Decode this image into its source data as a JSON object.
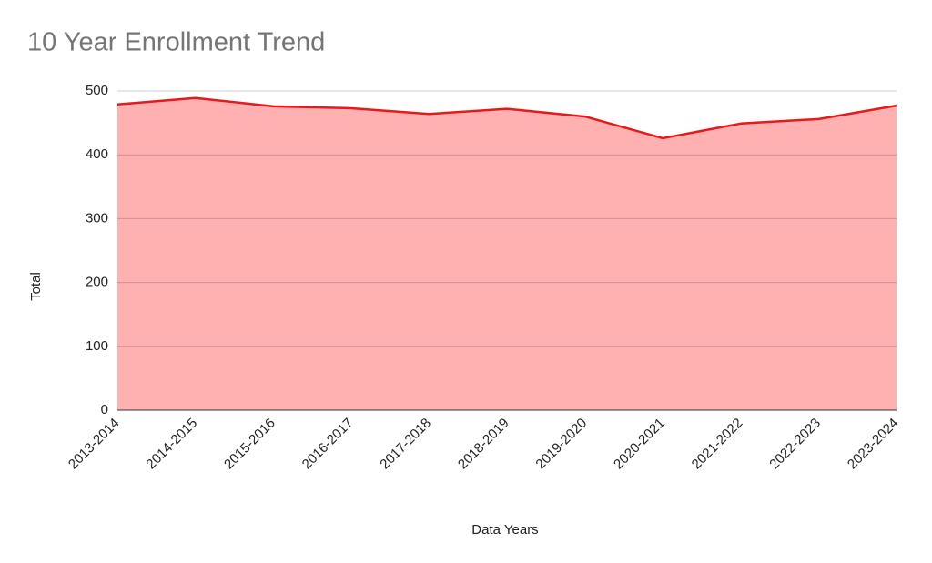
{
  "chart_data": {
    "type": "area",
    "title": "10 Year Enrollment Trend",
    "x_label": "Data Years",
    "y_label": "Total",
    "categories": [
      "2013-2014",
      "2014-2015",
      "2015-2016",
      "2016-2017",
      "2017-2018",
      "2018-2019",
      "2019-2020",
      "2020-2021",
      "2021-2022",
      "2022-2023",
      "2023-2024"
    ],
    "values": [
      479,
      489,
      476,
      473,
      464,
      472,
      460,
      426,
      449,
      456,
      477
    ],
    "color": "#e8191c",
    "fill": "#ffb0b1",
    "ylim": [
      0,
      500
    ],
    "yticks": [
      0,
      100,
      200,
      300,
      400,
      500
    ],
    "grid": true
  }
}
